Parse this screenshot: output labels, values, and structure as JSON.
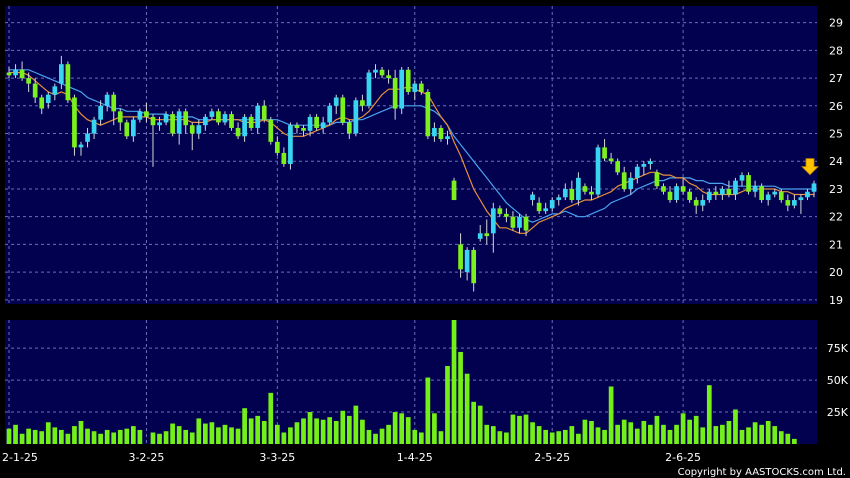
{
  "chart_data": {
    "type": "candlestick",
    "x_labels": [
      "2-1-25",
      "3-2-25",
      "3-3-25",
      "1-4-25",
      "2-5-25",
      "2-6-25"
    ],
    "price_axis": {
      "ticks": [
        "19",
        "20",
        "21",
        "22",
        "23",
        "24",
        "25",
        "26",
        "27",
        "28",
        "29"
      ],
      "range": [
        18.85,
        29.6
      ]
    },
    "volume_axis": {
      "ticks": [
        "25K",
        "50K",
        "75K"
      ],
      "range": [
        0,
        97000
      ]
    },
    "label_indices": [
      0,
      21,
      41,
      62,
      83,
      103
    ],
    "colors": {
      "up": "#38d4f0",
      "down": "#7cf01c",
      "ma_short": "#e8903a",
      "ma_long": "#4aa2ee",
      "volume": "#74f018",
      "panel_bg": "#010150",
      "grid": "#6a70b8",
      "arrow": "#ffc400"
    },
    "grid": true,
    "candles": [
      [
        27.2,
        27.4,
        27.0,
        27.1
      ],
      [
        27.1,
        27.5,
        27.0,
        27.3
      ],
      [
        27.3,
        27.6,
        26.9,
        27.0
      ],
      [
        27.0,
        27.2,
        26.5,
        26.8
      ],
      [
        26.8,
        27.0,
        26.1,
        26.3
      ],
      [
        26.3,
        26.4,
        25.7,
        25.9
      ],
      [
        26.1,
        26.5,
        25.9,
        26.4
      ],
      [
        26.4,
        26.8,
        26.2,
        26.7
      ],
      [
        26.8,
        27.8,
        26.6,
        27.5
      ],
      [
        27.5,
        27.6,
        26.1,
        26.2
      ],
      [
        26.3,
        26.4,
        24.2,
        24.5
      ],
      [
        24.5,
        24.7,
        24.2,
        24.6
      ],
      [
        24.7,
        25.2,
        24.5,
        25.0
      ],
      [
        25.0,
        25.6,
        24.8,
        25.5
      ],
      [
        25.5,
        26.2,
        25.3,
        26.0
      ],
      [
        26.0,
        26.5,
        25.8,
        26.4
      ],
      [
        26.4,
        26.5,
        25.3,
        25.8
      ],
      [
        25.8,
        25.9,
        25.1,
        25.4
      ],
      [
        25.4,
        25.5,
        24.8,
        24.9
      ],
      [
        24.9,
        25.6,
        24.7,
        25.5
      ],
      [
        25.5,
        25.9,
        25.4,
        25.8
      ],
      [
        25.8,
        26.1,
        25.4,
        25.6
      ],
      [
        25.6,
        25.7,
        23.8,
        25.3
      ],
      [
        25.3,
        25.6,
        25.1,
        25.4
      ],
      [
        25.4,
        25.8,
        25.3,
        25.7
      ],
      [
        25.7,
        25.8,
        24.9,
        25.0
      ],
      [
        25.0,
        25.9,
        24.6,
        25.8
      ],
      [
        25.8,
        25.9,
        25.0,
        25.3
      ],
      [
        25.3,
        25.4,
        24.4,
        25.0
      ],
      [
        25.0,
        25.5,
        24.8,
        25.3
      ],
      [
        25.3,
        25.7,
        25.1,
        25.6
      ],
      [
        25.6,
        25.9,
        25.5,
        25.8
      ],
      [
        25.8,
        25.9,
        25.3,
        25.4
      ],
      [
        25.4,
        25.8,
        25.3,
        25.7
      ],
      [
        25.7,
        25.8,
        25.1,
        25.2
      ],
      [
        25.2,
        25.4,
        24.8,
        24.9
      ],
      [
        24.9,
        25.7,
        24.7,
        25.6
      ],
      [
        25.6,
        25.7,
        25.1,
        25.2
      ],
      [
        25.2,
        26.1,
        25.0,
        26.0
      ],
      [
        26.0,
        26.2,
        25.4,
        25.5
      ],
      [
        25.5,
        25.6,
        24.6,
        24.7
      ],
      [
        24.7,
        24.9,
        24.2,
        24.3
      ],
      [
        24.3,
        24.5,
        23.8,
        23.9
      ],
      [
        23.9,
        25.4,
        23.7,
        25.3
      ],
      [
        25.3,
        25.4,
        25.0,
        25.2
      ],
      [
        25.2,
        25.3,
        24.9,
        25.1
      ],
      [
        25.1,
        25.7,
        24.9,
        25.6
      ],
      [
        25.6,
        25.7,
        25.1,
        25.2
      ],
      [
        25.2,
        25.6,
        25.0,
        25.4
      ],
      [
        25.4,
        26.1,
        25.3,
        26.0
      ],
      [
        26.0,
        26.4,
        25.7,
        26.3
      ],
      [
        26.3,
        26.4,
        25.3,
        25.4
      ],
      [
        25.4,
        25.5,
        24.8,
        25.0
      ],
      [
        25.0,
        26.3,
        24.9,
        26.2
      ],
      [
        26.2,
        26.4,
        25.8,
        26.0
      ],
      [
        26.0,
        27.3,
        25.9,
        27.2
      ],
      [
        27.2,
        27.5,
        27.0,
        27.3
      ],
      [
        27.3,
        27.4,
        27.0,
        27.1
      ],
      [
        27.1,
        27.3,
        26.8,
        27.0
      ],
      [
        27.0,
        27.3,
        25.5,
        25.9
      ],
      [
        25.9,
        27.4,
        25.7,
        27.3
      ],
      [
        27.3,
        27.4,
        26.4,
        26.5
      ],
      [
        26.5,
        26.9,
        26.2,
        26.8
      ],
      [
        26.8,
        26.9,
        26.4,
        26.5
      ],
      [
        26.5,
        26.6,
        24.8,
        24.9
      ],
      [
        24.9,
        25.4,
        24.7,
        25.2
      ],
      [
        25.2,
        25.3,
        24.7,
        24.8
      ],
      [
        24.8,
        25.1,
        24.6,
        24.9
      ],
      [
        23.3,
        23.4,
        22.6,
        22.6
      ],
      [
        21.0,
        21.4,
        19.8,
        20.1
      ],
      [
        20.0,
        20.9,
        19.7,
        20.8
      ],
      [
        20.8,
        20.9,
        19.3,
        19.6
      ],
      [
        21.2,
        21.7,
        21.1,
        21.4
      ],
      [
        21.4,
        21.9,
        21.0,
        21.3
      ],
      [
        21.4,
        22.5,
        20.7,
        22.3
      ],
      [
        22.3,
        22.4,
        22.0,
        22.1
      ],
      [
        22.1,
        22.3,
        21.8,
        22.0
      ],
      [
        22.0,
        22.2,
        21.5,
        21.6
      ],
      [
        21.6,
        22.1,
        21.4,
        22.0
      ],
      [
        22.0,
        22.1,
        21.3,
        21.5
      ],
      [
        22.6,
        22.9,
        22.4,
        22.8
      ],
      [
        22.5,
        22.7,
        22.1,
        22.2
      ],
      [
        22.2,
        22.5,
        22.1,
        22.3
      ],
      [
        22.3,
        22.7,
        22.2,
        22.6
      ],
      [
        22.6,
        22.8,
        22.4,
        22.7
      ],
      [
        22.7,
        23.2,
        22.6,
        23.0
      ],
      [
        23.0,
        23.3,
        22.5,
        22.6
      ],
      [
        22.6,
        23.6,
        22.4,
        23.4
      ],
      [
        23.1,
        23.2,
        22.8,
        22.9
      ],
      [
        22.9,
        23.1,
        22.6,
        22.8
      ],
      [
        22.8,
        24.6,
        22.7,
        24.5
      ],
      [
        24.5,
        24.8,
        24.0,
        24.1
      ],
      [
        24.1,
        24.3,
        23.9,
        24.0
      ],
      [
        24.0,
        24.1,
        23.5,
        23.6
      ],
      [
        23.6,
        23.8,
        22.9,
        23.0
      ],
      [
        23.0,
        23.6,
        22.8,
        23.4
      ],
      [
        23.4,
        23.9,
        23.2,
        23.8
      ],
      [
        23.8,
        24.0,
        23.5,
        23.9
      ],
      [
        23.9,
        24.1,
        23.7,
        24.0
      ],
      [
        23.6,
        23.7,
        23.0,
        23.1
      ],
      [
        23.1,
        23.2,
        22.8,
        22.9
      ],
      [
        22.9,
        23.1,
        22.5,
        22.6
      ],
      [
        22.6,
        23.2,
        22.5,
        23.1
      ],
      [
        23.1,
        23.4,
        22.8,
        22.9
      ],
      [
        22.9,
        23.0,
        22.5,
        22.6
      ],
      [
        22.6,
        22.7,
        22.1,
        22.4
      ],
      [
        22.4,
        22.8,
        22.2,
        22.6
      ],
      [
        22.6,
        23.0,
        22.5,
        22.9
      ],
      [
        22.9,
        23.1,
        22.6,
        22.8
      ],
      [
        22.8,
        23.1,
        22.6,
        23.0
      ],
      [
        23.0,
        23.3,
        22.7,
        22.8
      ],
      [
        22.8,
        23.4,
        22.6,
        23.3
      ],
      [
        23.3,
        23.6,
        23.1,
        23.5
      ],
      [
        23.5,
        23.6,
        22.8,
        22.9
      ],
      [
        22.9,
        23.3,
        22.7,
        23.1
      ],
      [
        23.1,
        23.2,
        22.5,
        22.6
      ],
      [
        22.6,
        22.9,
        22.4,
        22.8
      ],
      [
        22.8,
        23.0,
        22.7,
        22.9
      ],
      [
        22.9,
        23.0,
        22.5,
        22.6
      ],
      [
        22.6,
        22.8,
        22.2,
        22.4
      ],
      [
        22.4,
        22.8,
        22.3,
        22.6
      ],
      [
        22.6,
        22.8,
        22.1,
        22.7
      ],
      [
        22.7,
        23.0,
        22.6,
        22.9
      ],
      [
        22.9,
        23.3,
        22.7,
        23.2
      ]
    ],
    "ma_short": [
      27.2,
      27.2,
      27.2,
      27.1,
      26.9,
      26.7,
      26.5,
      26.4,
      26.5,
      26.4,
      26.0,
      25.7,
      25.5,
      25.4,
      25.3,
      25.4,
      25.5,
      25.6,
      25.6,
      25.6,
      25.6,
      25.6,
      25.5,
      25.5,
      25.5,
      25.5,
      25.5,
      25.5,
      25.4,
      25.4,
      25.4,
      25.5,
      25.5,
      25.5,
      25.5,
      25.5,
      25.4,
      25.4,
      25.4,
      25.5,
      25.4,
      25.2,
      25.0,
      24.9,
      24.9,
      24.9,
      25.0,
      25.1,
      25.2,
      25.3,
      25.5,
      25.6,
      25.5,
      25.5,
      25.6,
      25.8,
      26.1,
      26.4,
      26.6,
      26.6,
      26.6,
      26.7,
      26.6,
      26.5,
      26.4,
      26.0,
      25.6,
      25.3,
      24.7,
      24.2,
      23.6,
      23.0,
      22.6,
      22.2,
      21.9,
      21.6,
      21.6,
      21.5,
      21.4,
      21.4,
      21.6,
      21.8,
      21.9,
      22.0,
      22.1,
      22.3,
      22.4,
      22.5,
      22.6,
      22.6,
      22.7,
      22.8,
      22.9,
      23.1,
      23.2,
      23.3,
      23.4,
      23.5,
      23.6,
      23.6,
      23.5,
      23.5,
      23.4,
      23.4,
      23.2,
      23.1,
      22.9,
      22.8,
      22.8,
      22.8,
      22.8,
      22.8,
      22.9,
      23.0,
      23.0,
      23.0,
      23.0,
      23.0,
      22.9,
      22.9,
      22.8,
      22.8,
      22.8,
      22.8
    ],
    "ma_long": [
      27.3,
      27.3,
      27.3,
      27.3,
      27.2,
      27.1,
      27.0,
      26.9,
      26.8,
      26.7,
      26.6,
      26.5,
      26.3,
      26.2,
      26.1,
      26.0,
      25.9,
      25.9,
      25.8,
      25.8,
      25.8,
      25.7,
      25.7,
      25.7,
      25.7,
      25.6,
      25.6,
      25.6,
      25.6,
      25.5,
      25.5,
      25.5,
      25.5,
      25.5,
      25.5,
      25.5,
      25.5,
      25.5,
      25.5,
      25.5,
      25.5,
      25.5,
      25.4,
      25.3,
      25.3,
      25.3,
      25.3,
      25.3,
      25.3,
      25.3,
      25.4,
      25.4,
      25.4,
      25.5,
      25.5,
      25.6,
      25.7,
      25.8,
      25.9,
      26.0,
      26.0,
      26.0,
      26.0,
      26.0,
      25.9,
      25.8,
      25.6,
      25.3,
      24.9,
      24.6,
      24.3,
      24.0,
      23.7,
      23.4,
      23.1,
      22.8,
      22.5,
      22.3,
      22.1,
      21.9,
      21.8,
      21.9,
      22.0,
      22.1,
      22.1,
      22.2,
      22.1,
      22.0,
      22.0,
      22.1,
      22.2,
      22.3,
      22.5,
      22.6,
      22.7,
      22.8,
      23.0,
      23.1,
      23.2,
      23.3,
      23.3,
      23.4,
      23.4,
      23.4,
      23.4,
      23.3,
      23.3,
      23.2,
      23.2,
      23.2,
      23.1,
      23.1,
      23.1,
      23.1,
      23.1,
      23.1,
      23.1,
      23.1,
      23.0,
      23.0,
      23.0,
      23.0,
      23.0,
      23.0
    ],
    "volume": [
      12,
      15,
      8,
      12,
      11,
      10,
      17,
      13,
      11,
      8,
      14,
      18,
      12,
      10,
      8,
      11,
      9,
      11,
      12,
      14,
      11,
      0,
      9,
      8,
      10,
      16,
      14,
      11,
      9,
      20,
      16,
      17,
      13,
      15,
      13,
      12,
      28,
      20,
      22,
      18,
      40,
      15,
      9,
      13,
      17,
      20,
      25,
      20,
      19,
      21,
      18,
      26,
      22,
      30,
      19,
      11,
      8,
      12,
      15,
      25,
      24,
      21,
      11,
      9,
      52,
      24,
      10,
      61,
      97,
      72,
      55,
      33,
      30,
      15,
      14,
      10,
      9,
      23,
      22,
      23,
      17,
      14,
      11,
      9,
      10,
      11,
      14,
      8,
      19,
      18,
      13,
      11,
      45,
      15,
      19,
      17,
      12,
      18,
      15,
      22,
      15,
      11,
      15,
      24,
      19,
      22,
      13,
      46,
      14,
      15,
      18,
      27,
      11,
      13,
      17,
      15,
      18,
      14,
      10,
      8,
      4
    ],
    "last_marker": "down-arrow",
    "copyright": "Copyright by AASTOCKS.com Ltd."
  }
}
